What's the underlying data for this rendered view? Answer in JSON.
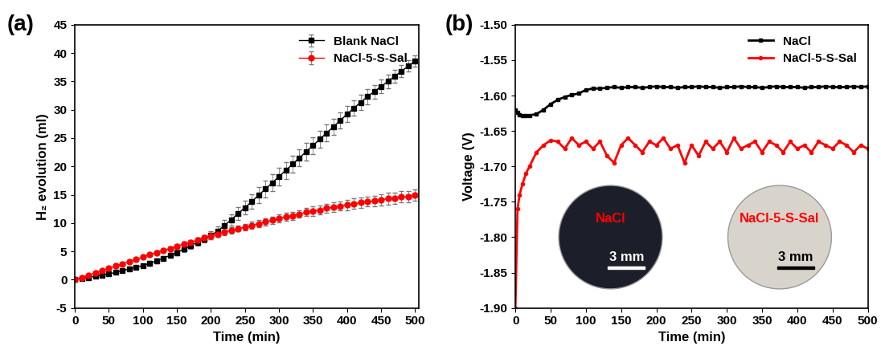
{
  "chart_data": [
    {
      "type": "line",
      "title": "(a)",
      "x_label": "Time (min)",
      "y_label": "H₂ evolution (ml)",
      "x": [
        0,
        10,
        20,
        30,
        40,
        50,
        60,
        70,
        80,
        90,
        100,
        110,
        120,
        130,
        140,
        150,
        160,
        170,
        180,
        190,
        200,
        210,
        220,
        230,
        240,
        250,
        260,
        270,
        280,
        290,
        300,
        310,
        320,
        330,
        340,
        350,
        360,
        370,
        380,
        390,
        400,
        410,
        420,
        430,
        440,
        450,
        460,
        470,
        480,
        490,
        500
      ],
      "series": [
        {
          "name": "Blank NaCl",
          "color": "#000000",
          "marker": "square",
          "line_style": "solid",
          "values": [
            0,
            0.2,
            0.4,
            0.6,
            0.8,
            1.0,
            1.3,
            1.6,
            1.9,
            2.2,
            2.5,
            2.9,
            3.3,
            3.8,
            4.3,
            4.8,
            5.4,
            6.0,
            6.6,
            7.2,
            7.8,
            8.6,
            9.6,
            10.6,
            11.7,
            12.7,
            13.8,
            14.9,
            16.0,
            17.1,
            18.2,
            19.3,
            20.4,
            21.5,
            22.6,
            23.7,
            24.8,
            25.9,
            27.0,
            28.1,
            29.2,
            30.3,
            31.3,
            32.3,
            33.2,
            34.1,
            35.0,
            35.9,
            36.8,
            37.7,
            38.6
          ],
          "errors": [
            0.1,
            0.1,
            0.2,
            0.2,
            0.2,
            0.2,
            0.3,
            0.3,
            0.3,
            0.3,
            0.3,
            0.4,
            0.4,
            0.4,
            0.4,
            0.5,
            0.5,
            0.5,
            0.6,
            0.6,
            0.7,
            0.8,
            0.9,
            1.0,
            1.1,
            1.2,
            1.3,
            1.4,
            1.5,
            1.5,
            1.5,
            1.5,
            1.5,
            1.5,
            1.5,
            1.5,
            1.5,
            1.5,
            1.4,
            1.4,
            1.4,
            1.3,
            1.3,
            1.3,
            1.2,
            1.2,
            1.2,
            1.1,
            1.1,
            1.0,
            1.0
          ]
        },
        {
          "name": "NaCl-5-S-Sal",
          "color": "#ff0000",
          "marker": "circle",
          "line_style": "solid",
          "values": [
            0,
            0.4,
            0.8,
            1.2,
            1.6,
            2.0,
            2.4,
            2.8,
            3.2,
            3.6,
            4.0,
            4.4,
            4.8,
            5.2,
            5.5,
            5.9,
            6.3,
            6.6,
            7.0,
            7.4,
            7.7,
            8.0,
            8.4,
            8.7,
            9.0,
            9.3,
            9.6,
            9.9,
            10.2,
            10.5,
            10.8,
            11.1,
            11.3,
            11.6,
            11.9,
            12.1,
            12.3,
            12.6,
            12.8,
            13.0,
            13.2,
            13.4,
            13.6,
            13.8,
            13.9,
            14.1,
            14.3,
            14.4,
            14.6,
            14.7,
            14.9
          ],
          "errors": [
            0.1,
            0.1,
            0.1,
            0.1,
            0.1,
            0.2,
            0.2,
            0.2,
            0.2,
            0.2,
            0.3,
            0.3,
            0.3,
            0.3,
            0.3,
            0.4,
            0.4,
            0.4,
            0.4,
            0.4,
            0.5,
            0.5,
            0.5,
            0.5,
            0.5,
            0.6,
            0.6,
            0.6,
            0.6,
            0.6,
            0.7,
            0.7,
            0.7,
            0.7,
            0.7,
            0.8,
            0.8,
            0.8,
            0.8,
            0.8,
            0.9,
            0.9,
            0.9,
            0.9,
            0.9,
            1.0,
            1.0,
            1.0,
            1.0,
            1.0,
            1.0
          ]
        }
      ],
      "xlim": [
        0,
        505
      ],
      "xticks": [
        0,
        50,
        100,
        150,
        200,
        250,
        300,
        350,
        400,
        450,
        500
      ],
      "ylim": [
        -5,
        45
      ],
      "yticks": [
        -5,
        0,
        5,
        10,
        15,
        20,
        25,
        30,
        35,
        40,
        45
      ],
      "legend": "upper right"
    },
    {
      "type": "line",
      "title": "(b)",
      "x_label": "Time (min)",
      "y_label": "Voltage (V)",
      "x": [
        0,
        3,
        6,
        10,
        15,
        20,
        30,
        40,
        50,
        60,
        70,
        80,
        90,
        100,
        110,
        120,
        130,
        140,
        150,
        160,
        170,
        180,
        190,
        200,
        210,
        220,
        230,
        240,
        250,
        260,
        270,
        280,
        290,
        300,
        310,
        320,
        330,
        340,
        350,
        360,
        370,
        380,
        390,
        400,
        410,
        420,
        430,
        440,
        450,
        460,
        470,
        480,
        490,
        500
      ],
      "series": [
        {
          "name": "NaCl",
          "color": "#000000",
          "marker": "square",
          "line_style": "solid",
          "values": [
            -1.62,
            -1.624,
            -1.627,
            -1.628,
            -1.628,
            -1.628,
            -1.626,
            -1.62,
            -1.612,
            -1.606,
            -1.602,
            -1.599,
            -1.597,
            -1.592,
            -1.59,
            -1.59,
            -1.589,
            -1.588,
            -1.589,
            -1.588,
            -1.588,
            -1.589,
            -1.588,
            -1.587,
            -1.588,
            -1.588,
            -1.589,
            -1.588,
            -1.588,
            -1.587,
            -1.588,
            -1.588,
            -1.589,
            -1.588,
            -1.588,
            -1.587,
            -1.588,
            -1.588,
            -1.589,
            -1.588,
            -1.587,
            -1.588,
            -1.588,
            -1.588,
            -1.589,
            -1.588,
            -1.588,
            -1.587,
            -1.588,
            -1.588,
            -1.588,
            -1.587,
            -1.588,
            -1.587
          ]
        },
        {
          "name": "NaCl-5-S-Sal",
          "color": "#ff0000",
          "marker": "circle",
          "line_style": "solid",
          "values": [
            -1.9,
            -1.76,
            -1.74,
            -1.725,
            -1.71,
            -1.7,
            -1.68,
            -1.67,
            -1.663,
            -1.665,
            -1.675,
            -1.66,
            -1.67,
            -1.665,
            -1.675,
            -1.665,
            -1.685,
            -1.695,
            -1.67,
            -1.66,
            -1.67,
            -1.68,
            -1.665,
            -1.67,
            -1.66,
            -1.675,
            -1.67,
            -1.695,
            -1.67,
            -1.685,
            -1.665,
            -1.675,
            -1.665,
            -1.68,
            -1.66,
            -1.675,
            -1.67,
            -1.665,
            -1.68,
            -1.665,
            -1.67,
            -1.68,
            -1.665,
            -1.675,
            -1.67,
            -1.68,
            -1.665,
            -1.67,
            -1.675,
            -1.665,
            -1.67,
            -1.68,
            -1.67,
            -1.675
          ]
        }
      ],
      "xlim": [
        0,
        500
      ],
      "xticks": [
        0,
        50,
        100,
        150,
        200,
        250,
        300,
        350,
        400,
        450,
        500
      ],
      "ylim": [
        -1.9,
        -1.5
      ],
      "yticks": [
        {
          "value": -1.9,
          "label": "-1.90"
        },
        {
          "value": -1.85,
          "label": "-1.85"
        },
        {
          "value": -1.8,
          "label": "-1.80"
        },
        {
          "value": -1.75,
          "label": "-1.75"
        },
        {
          "value": -1.7,
          "label": "-1.70"
        },
        {
          "value": -1.65,
          "label": "-1.65"
        },
        {
          "value": -1.6,
          "label": "-1.60"
        },
        {
          "value": -1.55,
          "label": "-1.55"
        },
        {
          "value": -1.5,
          "label": "-1.50"
        }
      ],
      "legend": "upper right",
      "annotations": [
        {
          "text": "NaCl",
          "color": "#ff0000"
        },
        {
          "text": "3 mm",
          "color": "#ffffff"
        },
        {
          "text": "NaCl-5-S-Sal",
          "color": "#ff0000"
        },
        {
          "text": "3 mm",
          "color": "#000000"
        }
      ]
    }
  ]
}
